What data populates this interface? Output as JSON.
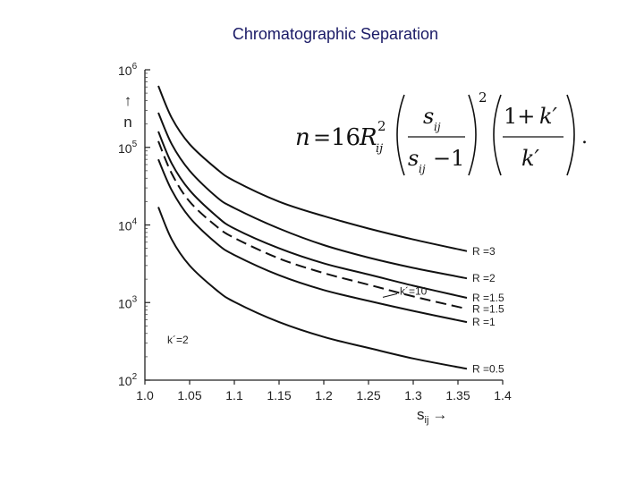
{
  "slide": {
    "title": "Chromatographic Separation"
  },
  "chart_data": {
    "type": "line",
    "title": "",
    "xlabel": "s",
    "xlabel_sub": "ij",
    "xlabel_arrow": "→",
    "ylabel": "n",
    "ylabel_arrow": "↑",
    "xlim": [
      1.0,
      1.4
    ],
    "ylim": [
      100,
      1000000
    ],
    "y_scale": "log",
    "grid": false,
    "x_ticks": [
      "1.0",
      "1.05",
      "1.1",
      "1.15",
      "1.2",
      "1.25",
      "1.3",
      "1.35",
      "1.4"
    ],
    "y_ticks": [
      {
        "base": "10",
        "exp": "2",
        "value": 100
      },
      {
        "base": "10",
        "exp": "3",
        "value": 1000
      },
      {
        "base": "10",
        "exp": "4",
        "value": 10000
      },
      {
        "base": "10",
        "exp": "5",
        "value": 100000
      },
      {
        "base": "10",
        "exp": "6",
        "value": 1000000
      }
    ],
    "annotation": "k´=2",
    "series": [
      {
        "name": "R =3",
        "dashed": false,
        "x": [
          1.015,
          1.03,
          1.05,
          1.08,
          1.1,
          1.15,
          1.2,
          1.25,
          1.3,
          1.36
        ],
        "y": [
          620000,
          240000,
          110000,
          53000,
          37000,
          20000,
          13000,
          9000,
          6500,
          4600
        ]
      },
      {
        "name": "R =2",
        "dashed": false,
        "x": [
          1.015,
          1.03,
          1.05,
          1.08,
          1.1,
          1.15,
          1.2,
          1.25,
          1.3,
          1.36
        ],
        "y": [
          280000,
          110000,
          50000,
          23000,
          16500,
          9000,
          5500,
          3800,
          2800,
          2050
        ]
      },
      {
        "name": "R =1.5",
        "dashed": false,
        "x": [
          1.015,
          1.03,
          1.05,
          1.08,
          1.1,
          1.15,
          1.2,
          1.25,
          1.3,
          1.36
        ],
        "y": [
          160000,
          62000,
          28000,
          13000,
          9000,
          5000,
          3200,
          2300,
          1650,
          1150
        ]
      },
      {
        "name": "R =1.5",
        "dashed": true,
        "label": "k´=10",
        "x": [
          1.015,
          1.03,
          1.05,
          1.08,
          1.1,
          1.15,
          1.2,
          1.25,
          1.3,
          1.36
        ],
        "y": [
          120000,
          46000,
          20000,
          9600,
          6800,
          3700,
          2400,
          1700,
          1200,
          830
        ]
      },
      {
        "name": "R =1",
        "dashed": false,
        "x": [
          1.015,
          1.03,
          1.05,
          1.08,
          1.1,
          1.15,
          1.2,
          1.25,
          1.3,
          1.36
        ],
        "y": [
          70000,
          28000,
          12500,
          5800,
          4100,
          2250,
          1450,
          1050,
          780,
          560
        ]
      },
      {
        "name": "R =0.5",
        "dashed": false,
        "x": [
          1.015,
          1.03,
          1.05,
          1.08,
          1.1,
          1.15,
          1.2,
          1.25,
          1.3,
          1.36
        ],
        "y": [
          17000,
          6500,
          3000,
          1450,
          1020,
          560,
          360,
          260,
          190,
          140
        ]
      }
    ]
  },
  "formula": {
    "lhs": "n",
    "eq": "=",
    "coef": "16",
    "R": "R",
    "R_sub": "ij",
    "R_sup": "2",
    "s": "s",
    "ij": "ij",
    "minus_one": "−1",
    "outer_exp": "2",
    "one_plus": "1+",
    "k_prime": "k′",
    "period": "."
  }
}
